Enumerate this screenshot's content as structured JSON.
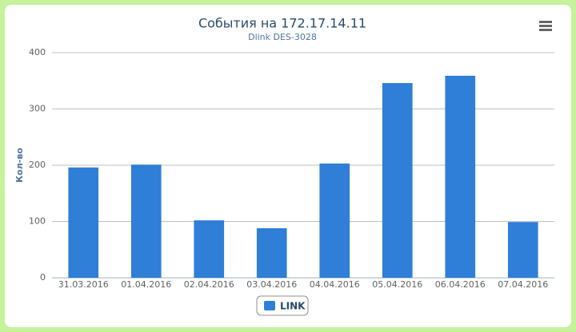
{
  "chart_data": {
    "type": "bar",
    "title": "События на 172.17.14.11",
    "subtitle": "Dlink DES-3028",
    "y_label": "Кол-во",
    "categories": [
      "31.03.2016",
      "01.04.2016",
      "02.04.2016",
      "03.04.2016",
      "04.04.2016",
      "05.04.2016",
      "06.04.2016",
      "07.04.2016"
    ],
    "series": [
      {
        "name": "LINK",
        "color": "#2f7ed8",
        "values": [
          196,
          201,
          102,
          88,
          203,
          346,
          359,
          99
        ]
      }
    ],
    "ylim": [
      0,
      400
    ],
    "yticks": [
      0,
      100,
      200,
      300,
      400
    ],
    "grid": true,
    "legend": "bottom"
  }
}
